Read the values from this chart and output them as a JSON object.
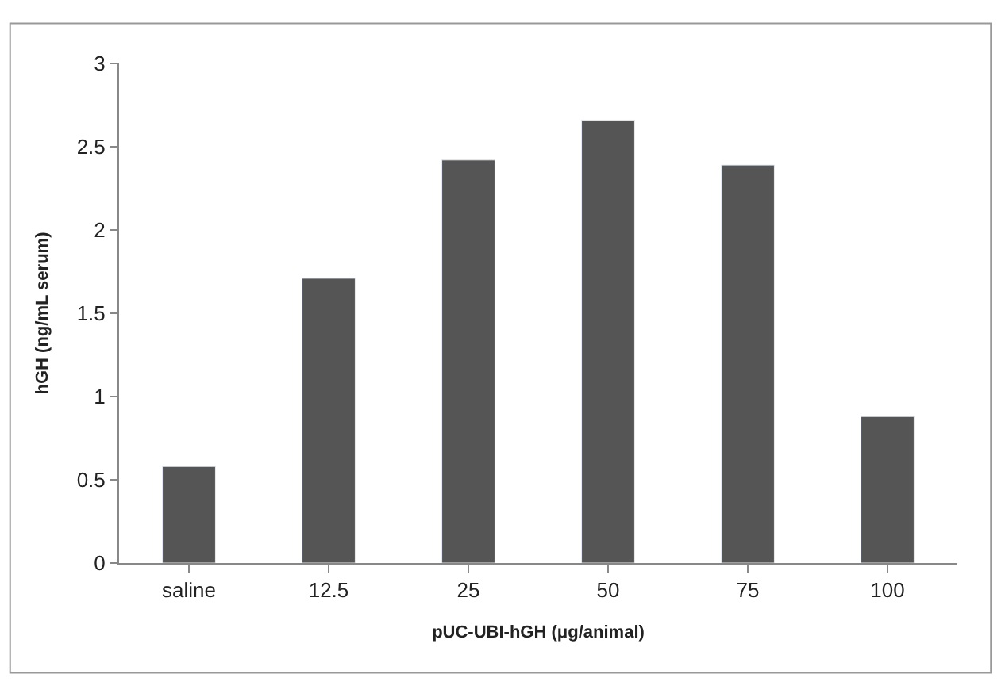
{
  "chart_data": {
    "type": "bar",
    "xlabel": "pUC-UBI-hGH (μg/animal)",
    "ylabel": "hGH (ng/mL serum)",
    "categories": [
      "saline",
      "12.5",
      "25",
      "50",
      "75",
      "100"
    ],
    "series": [
      {
        "color": "#555555",
        "values": [
          0.58,
          1.71,
          2.42,
          2.66,
          2.39,
          0.88
        ]
      }
    ],
    "ylim": [
      0,
      3
    ],
    "yticks": [
      0,
      0.5,
      1,
      1.5,
      2,
      2.5,
      3
    ]
  }
}
